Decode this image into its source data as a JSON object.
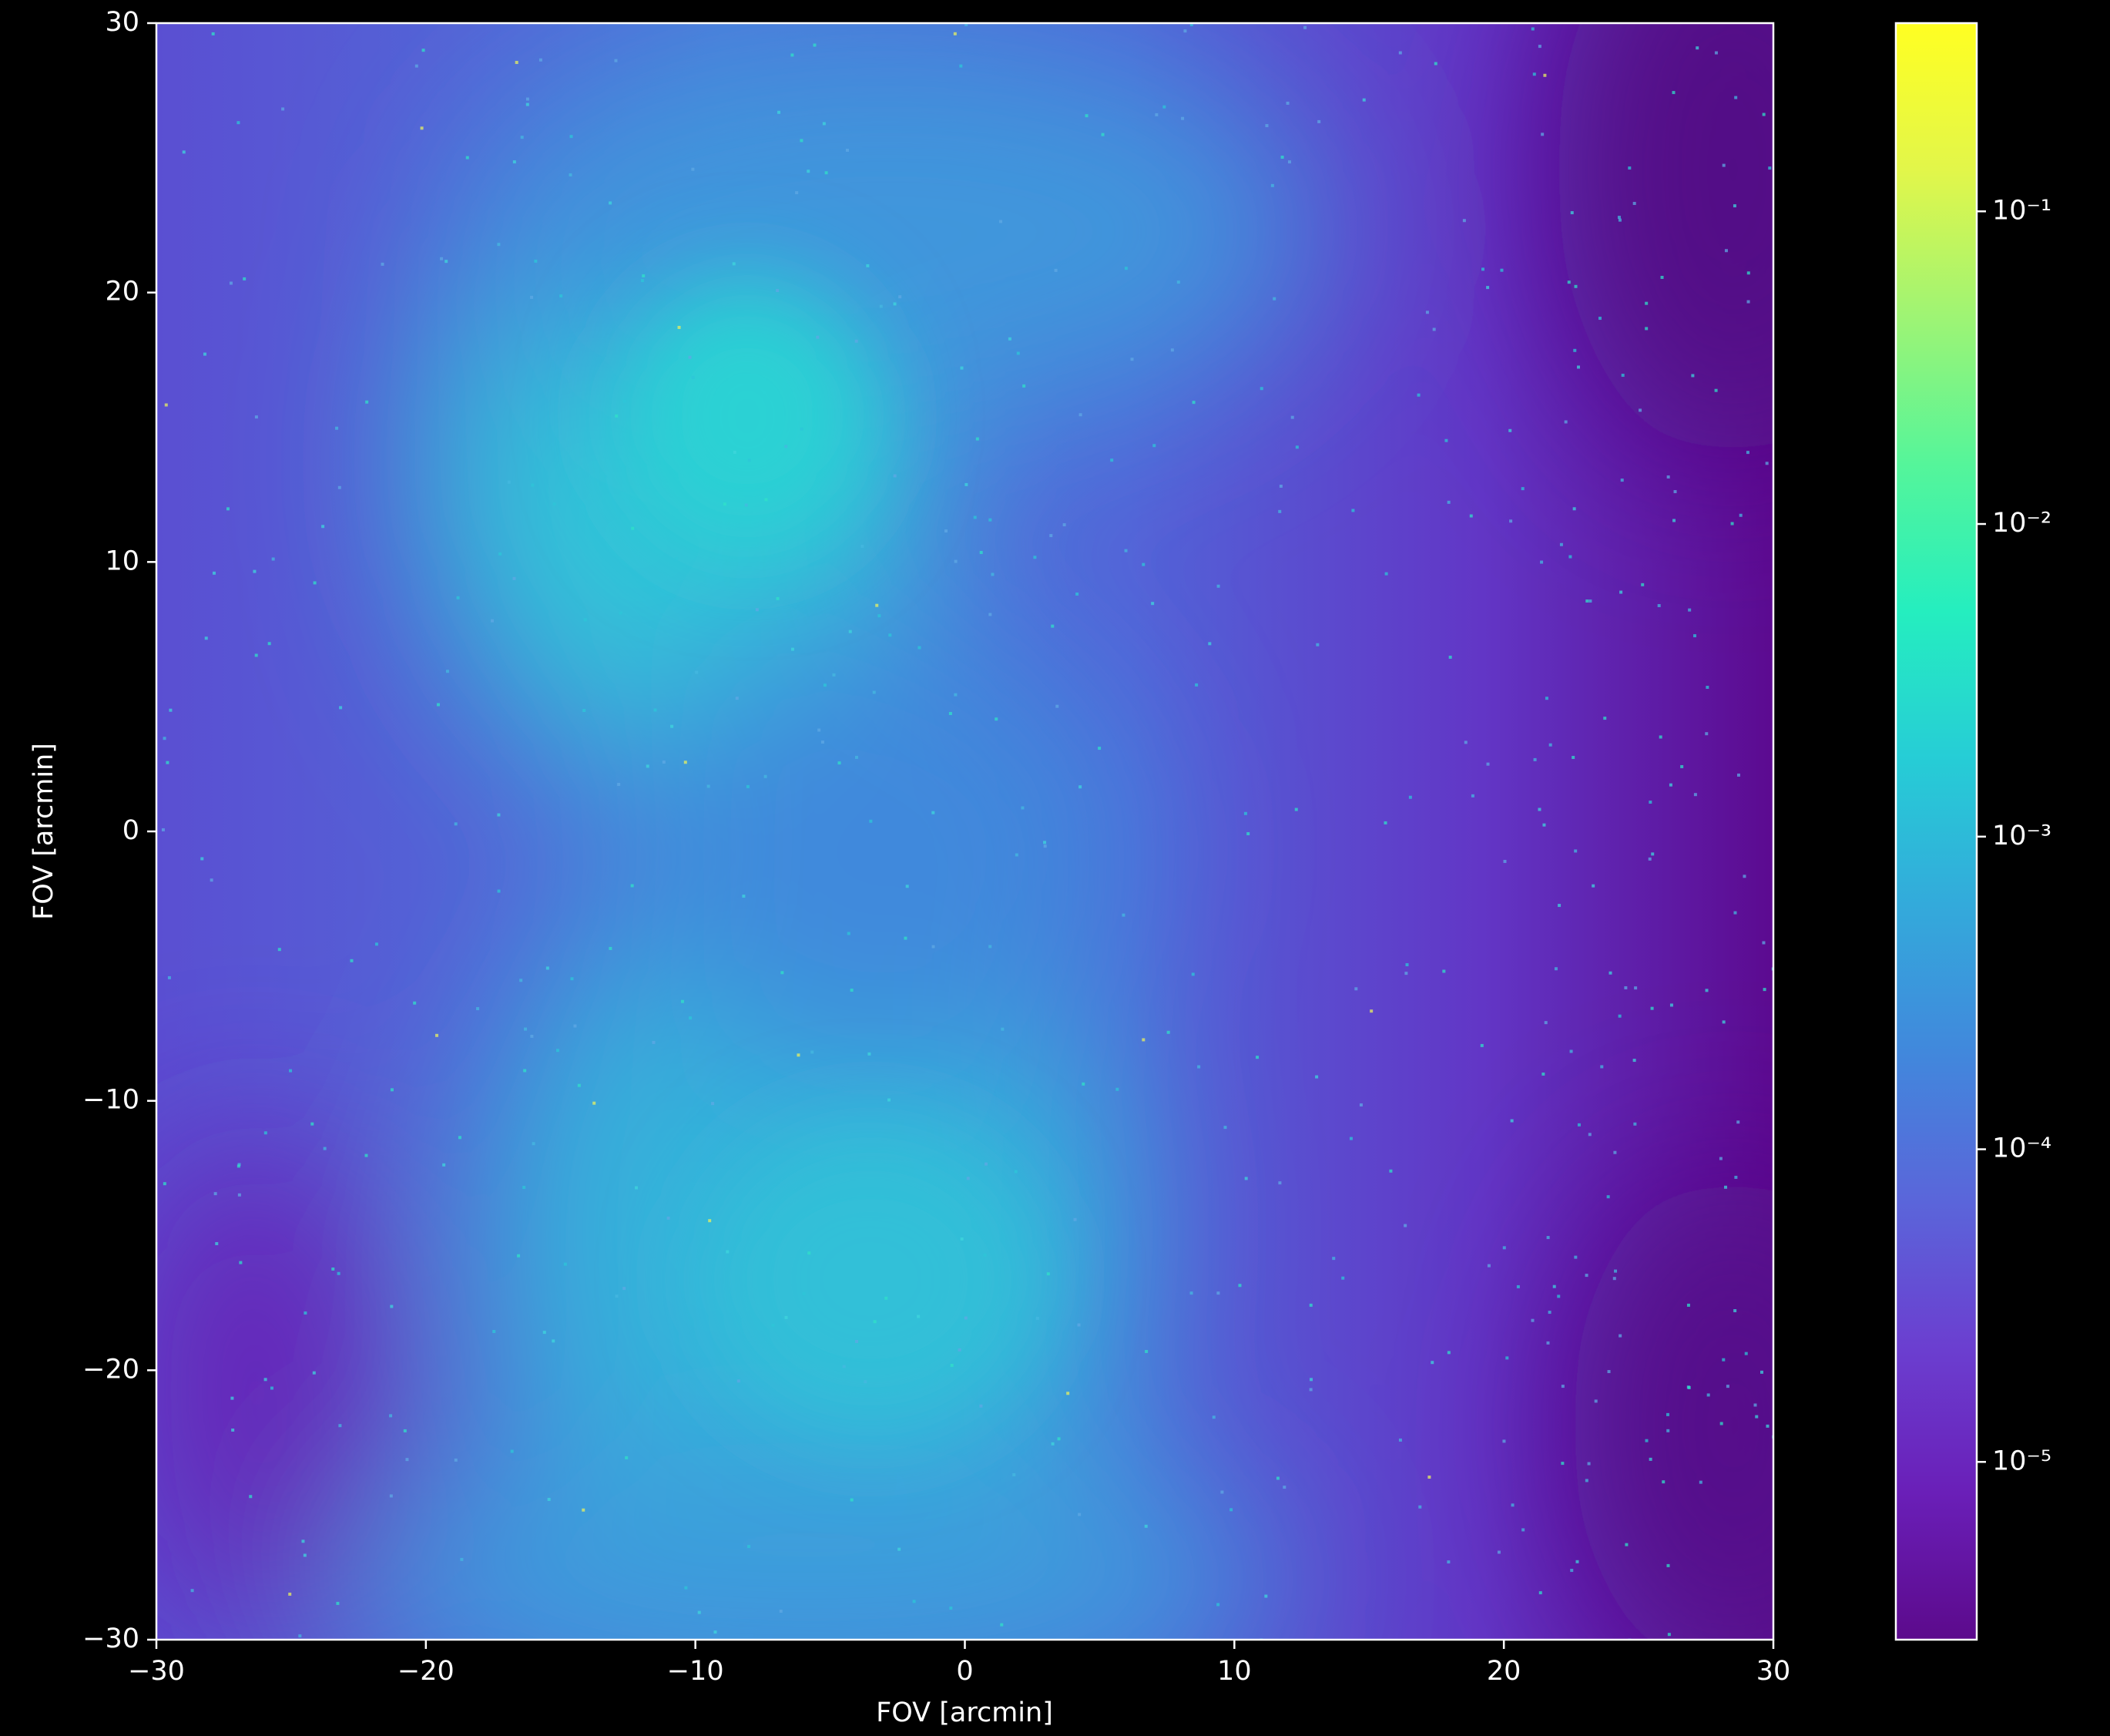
{
  "chart_data": {
    "type": "image",
    "xlabel": "FOV [arcmin]",
    "ylabel": "FOV [arcmin]",
    "xlim": [
      -30,
      30
    ],
    "ylim": [
      -30,
      30
    ],
    "xticks": [
      {
        "value": -30,
        "label": "−30"
      },
      {
        "value": -20,
        "label": "−20"
      },
      {
        "value": -10,
        "label": "−10"
      },
      0,
      10,
      20,
      30
    ],
    "yticks": [
      {
        "value": -30,
        "label": "−30"
      },
      {
        "value": -20,
        "label": "−20"
      },
      {
        "value": -10,
        "label": "−10"
      },
      0,
      10,
      20,
      30
    ],
    "colorbar": {
      "scale": "log",
      "lim": [
        2.7e-06,
        0.4
      ],
      "ticks": [
        {
          "value": 1e-05,
          "label": "10⁻⁵"
        },
        {
          "value": 0.0001,
          "label": "10⁻⁴"
        },
        {
          "value": 0.001,
          "label": "10⁻³"
        },
        {
          "value": 0.01,
          "label": "10⁻²"
        },
        {
          "value": 0.1,
          "label": "10⁻¹"
        }
      ],
      "colormap": [
        "#5c0a8c",
        "#6a1fb8",
        "#6b3fd0",
        "#5a66da",
        "#4188dc",
        "#33aadb",
        "#26cdd6",
        "#25eebf",
        "#55f59a",
        "#9ef474",
        "#e2f64a",
        "#ffff22"
      ]
    }
  }
}
